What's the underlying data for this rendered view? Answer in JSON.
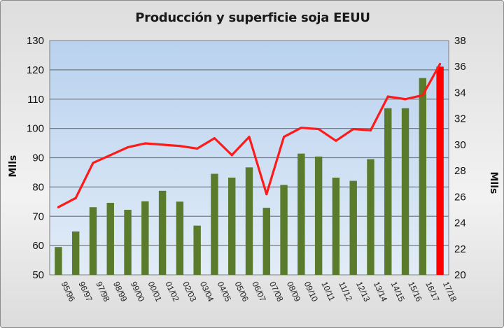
{
  "chart_data": {
    "type": "bar",
    "title": "Producción y superficie soja EEUU",
    "categories": [
      "95/96",
      "96/97",
      "97/98",
      "98/99",
      "99/00",
      "00/01",
      "01/02",
      "02/03",
      "03/04",
      "04/05",
      "05/06",
      "06/07",
      "07/08",
      "08/09",
      "09/10",
      "10/11",
      "11/12",
      "12/13",
      "13/14",
      "14/15",
      "15/16",
      "16/17",
      "17/18"
    ],
    "ylabel_left": "Mlls",
    "ylabel_right": "Mlls",
    "ylim_left": [
      50,
      130
    ],
    "ylim_right": [
      20,
      38
    ],
    "yticks_left": [
      50,
      60,
      70,
      80,
      90,
      100,
      110,
      120,
      130
    ],
    "yticks_right": [
      20,
      22,
      24,
      26,
      28,
      30,
      32,
      34,
      36,
      38
    ],
    "grid": true,
    "legend": "none",
    "series": [
      {
        "type": "bar",
        "axis": "left",
        "color": "#5a7a2c",
        "values": [
          59.5,
          64.8,
          73.1,
          74.6,
          72.2,
          75.1,
          78.7,
          75.0,
          66.8,
          84.5,
          83.2,
          86.7,
          72.9,
          80.7,
          91.4,
          90.4,
          83.2,
          82.1,
          89.5,
          106.9,
          106.9,
          117.2,
          121.1
        ],
        "highlight_last_color": "#ff0000"
      },
      {
        "type": "line",
        "axis": "right",
        "color": "#ff1a1a",
        "values": [
          25.2,
          25.9,
          28.6,
          29.2,
          29.8,
          30.1,
          30.0,
          29.9,
          29.7,
          30.5,
          29.2,
          30.6,
          26.2,
          30.6,
          31.3,
          31.2,
          30.3,
          31.2,
          31.1,
          33.7,
          33.5,
          33.8,
          36.2
        ]
      }
    ]
  }
}
